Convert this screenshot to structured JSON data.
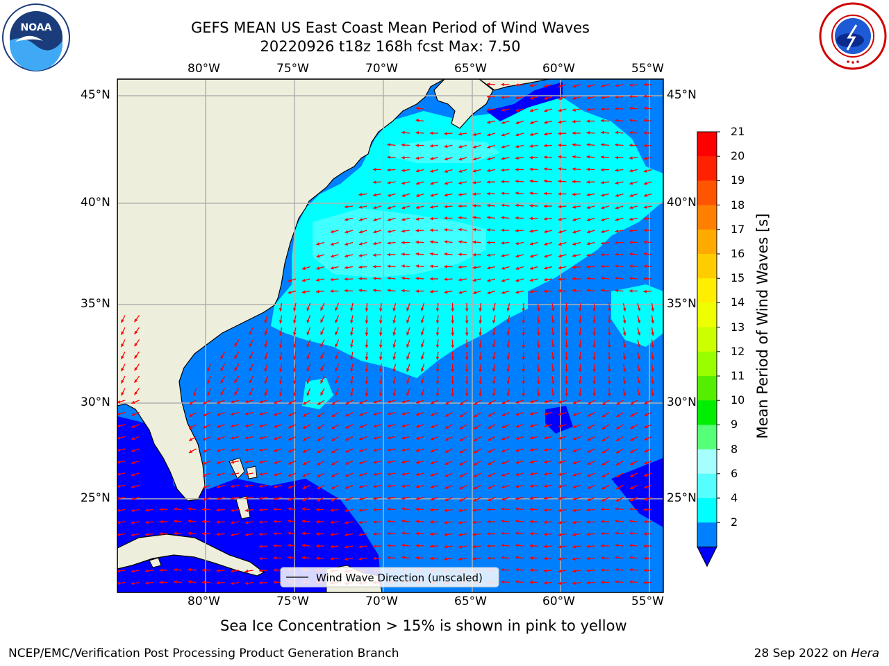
{
  "header": {
    "title_line1": "GEFS MEAN US East Coast Mean Period of Wind Waves",
    "title_line2": "20220926 t18z 168h fcst   Max: 7.50"
  },
  "logos": {
    "left": {
      "name": "noaa-logo",
      "text": "NOAA",
      "ring_text": "NATIONAL OCEANIC AND ATMOSPHERIC ADMINISTRATION · U.S. DEPARTMENT OF COMMERCE"
    },
    "right": {
      "name": "nws-logo",
      "ring_text": "NATIONAL WEATHER SERVICE"
    }
  },
  "map": {
    "longitude_labels": [
      "80°W",
      "75°W",
      "70°W",
      "65°W",
      "60°W",
      "55°W"
    ],
    "latitude_labels": [
      "45°N",
      "40°N",
      "35°N",
      "30°N",
      "25°N"
    ],
    "legend_label": "Wind Wave Direction (unscaled)",
    "colors": {
      "land": "#eeeedc",
      "band_2_4": "#0080ff",
      "band_lt2": "#0000ff",
      "band_4_6": "#00ffff",
      "band_6_8": "#40ffff",
      "arrow": "#ff0000",
      "grid": "#b0b0b0"
    }
  },
  "colorbar": {
    "label": "Mean Period of Wind Waves [s]",
    "ticks": [
      "21",
      "20",
      "19",
      "18",
      "17",
      "16",
      "15",
      "14",
      "13",
      "12",
      "11",
      "10",
      "9",
      "8",
      "6",
      "4",
      "2"
    ],
    "colors_top_to_bottom": [
      "#ff0000",
      "#ff2200",
      "#ff5500",
      "#ff8000",
      "#ffaa00",
      "#ffcc00",
      "#ffee00",
      "#eeff00",
      "#ccff00",
      "#99ff00",
      "#55ee00",
      "#00ee00",
      "#55ff77",
      "#a6ffff",
      "#55ffff",
      "#00ffff",
      "#0080ff"
    ],
    "extend_color": "#0000ff"
  },
  "footer": {
    "note": "Sea Ice Concentration > 15% is shown in pink to yellow",
    "credit": "NCEP/EMC/Verification Post Processing Product Generation Branch",
    "date": "28 Sep 2022 on",
    "machine": "Hera"
  }
}
